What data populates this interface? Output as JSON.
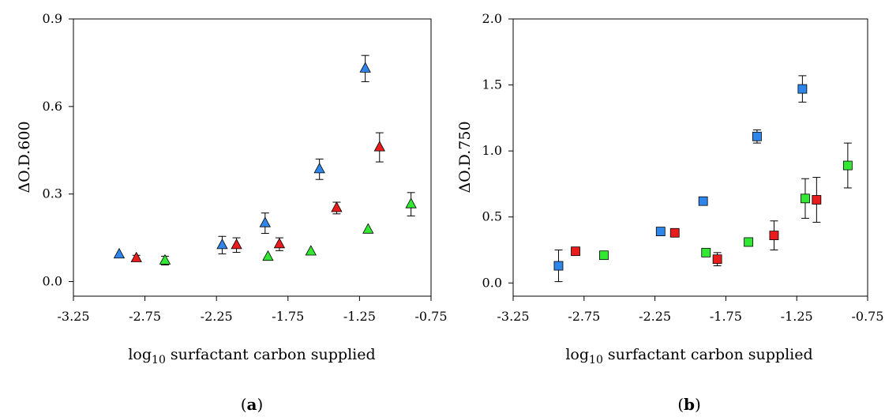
{
  "panels": [
    {
      "label_open": "(",
      "label_letter": "a",
      "label_close": ")"
    },
    {
      "label_open": "(",
      "label_letter": "b",
      "label_close": ")"
    }
  ],
  "chart_data": [
    {
      "type": "scatter",
      "title": "",
      "ylabel": "ΔO.D.600",
      "xlabel_base": "log",
      "xlabel_sub": "10",
      "xlabel_rest": " surfactant carbon supplied",
      "xlim": [
        -3.25,
        -0.75
      ],
      "ylim": [
        -0.05,
        0.9
      ],
      "xticks": [
        -3.25,
        -2.75,
        -2.25,
        -1.75,
        -1.25,
        -0.75
      ],
      "xtick_labels": [
        "-3.25",
        "-2.75",
        "-2.25",
        "-1.75",
        "-1.25",
        "-0.75"
      ],
      "yticks": [
        0.0,
        0.3,
        0.6,
        0.9
      ],
      "ytick_labels": [
        "0.0",
        "0.3",
        "0.6",
        "0.9"
      ],
      "marker": "triangle",
      "series": [
        {
          "color": "#2f86e8",
          "points": [
            {
              "x": -2.93,
              "y": 0.093,
              "err": 0
            },
            {
              "x": -2.21,
              "y": 0.125,
              "err": 0.03
            },
            {
              "x": -1.91,
              "y": 0.2,
              "err": 0.035
            },
            {
              "x": -1.53,
              "y": 0.385,
              "err": 0.035
            },
            {
              "x": -1.21,
              "y": 0.73,
              "err": 0.045
            }
          ]
        },
        {
          "color": "#e81c1c",
          "points": [
            {
              "x": -2.81,
              "y": 0.08,
              "err": 0.01
            },
            {
              "x": -2.11,
              "y": 0.125,
              "err": 0.025
            },
            {
              "x": -1.81,
              "y": 0.128,
              "err": 0.022
            },
            {
              "x": -1.41,
              "y": 0.252,
              "err": 0.02
            },
            {
              "x": -1.11,
              "y": 0.46,
              "err": 0.05
            }
          ]
        },
        {
          "color": "#33e833",
          "points": [
            {
              "x": -2.61,
              "y": 0.072,
              "err": 0.015
            },
            {
              "x": -1.89,
              "y": 0.085,
              "err": 0
            },
            {
              "x": -1.59,
              "y": 0.103,
              "err": 0
            },
            {
              "x": -1.19,
              "y": 0.178,
              "err": 0
            },
            {
              "x": -0.89,
              "y": 0.265,
              "err": 0.04
            }
          ]
        }
      ]
    },
    {
      "type": "scatter",
      "title": "",
      "ylabel": "ΔO.D.750",
      "xlabel_base": "log",
      "xlabel_sub": "10",
      "xlabel_rest": " surfactant carbon supplied",
      "xlim": [
        -3.25,
        -0.75
      ],
      "ylim": [
        -0.1,
        2.0
      ],
      "xticks": [
        -3.25,
        -2.75,
        -2.25,
        -1.75,
        -1.25,
        -0.75
      ],
      "xtick_labels": [
        "-3.25",
        "-2.75",
        "-2.25",
        "-1.75",
        "-1.25",
        "-0.75"
      ],
      "yticks": [
        0.0,
        0.5,
        1.0,
        1.5,
        2.0
      ],
      "ytick_labels": [
        "0.0",
        "0.5",
        "1.0",
        "1.5",
        "2.0"
      ],
      "marker": "square",
      "series": [
        {
          "color": "#2f86e8",
          "points": [
            {
              "x": -2.93,
              "y": 0.13,
              "err": 0.12
            },
            {
              "x": -2.21,
              "y": 0.39,
              "err": 0
            },
            {
              "x": -1.91,
              "y": 0.62,
              "err": 0
            },
            {
              "x": -1.53,
              "y": 1.11,
              "err": 0.05
            },
            {
              "x": -1.21,
              "y": 1.47,
              "err": 0.1
            }
          ]
        },
        {
          "color": "#e81c1c",
          "points": [
            {
              "x": -2.81,
              "y": 0.24,
              "err": 0
            },
            {
              "x": -2.11,
              "y": 0.38,
              "err": 0
            },
            {
              "x": -1.81,
              "y": 0.18,
              "err": 0.05
            },
            {
              "x": -1.41,
              "y": 0.36,
              "err": 0.11
            },
            {
              "x": -1.11,
              "y": 0.63,
              "err": 0.17
            }
          ]
        },
        {
          "color": "#33e833",
          "points": [
            {
              "x": -2.61,
              "y": 0.21,
              "err": 0.03
            },
            {
              "x": -1.89,
              "y": 0.23,
              "err": 0
            },
            {
              "x": -1.59,
              "y": 0.31,
              "err": 0
            },
            {
              "x": -1.19,
              "y": 0.64,
              "err": 0.15
            },
            {
              "x": -0.89,
              "y": 0.89,
              "err": 0.17
            }
          ]
        }
      ]
    }
  ]
}
